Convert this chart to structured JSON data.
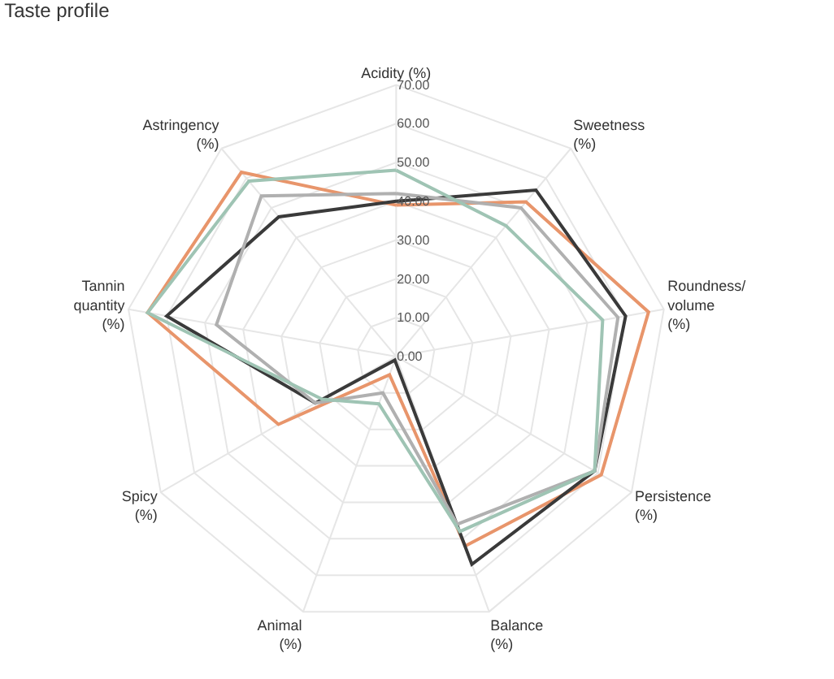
{
  "chart_data": {
    "type": "radar",
    "title": "Taste profile",
    "categories": [
      "Acidity (%)",
      "Sweetness (%)",
      "Roundness/ volume (%)",
      "Persistence (%)",
      "Balance (%)",
      "Animal (%)",
      "Spicy (%)",
      "Tannin quantity (%)",
      "Astringency (%)"
    ],
    "series": [
      {
        "color": "#e8956b",
        "values": [
          39,
          52,
          66,
          61,
          52,
          5,
          35,
          65,
          62
        ]
      },
      {
        "color": "#3a3a3a",
        "values": [
          40,
          56,
          60,
          59,
          57,
          1,
          24,
          60,
          47
        ]
      },
      {
        "color": "#b0b0b0",
        "values": [
          42,
          50,
          58,
          59,
          46,
          10,
          24,
          47,
          54
        ]
      },
      {
        "color": "#9fc4b4",
        "values": [
          48,
          44,
          54,
          59,
          48,
          13,
          22,
          65,
          59
        ]
      }
    ],
    "ylim": [
      0,
      70
    ],
    "yticks": [
      {
        "value": 0,
        "label": "0.00"
      },
      {
        "value": 10,
        "label": "10.00"
      },
      {
        "value": 20,
        "label": "20.00"
      },
      {
        "value": 30,
        "label": "30.00"
      },
      {
        "value": 40,
        "label": "40.00"
      },
      {
        "value": 50,
        "label": "50.00"
      },
      {
        "value": 60,
        "label": "60.00"
      },
      {
        "value": 70,
        "label": "70.00"
      }
    ],
    "grid": true,
    "marker": "none",
    "line_style": "solid"
  }
}
